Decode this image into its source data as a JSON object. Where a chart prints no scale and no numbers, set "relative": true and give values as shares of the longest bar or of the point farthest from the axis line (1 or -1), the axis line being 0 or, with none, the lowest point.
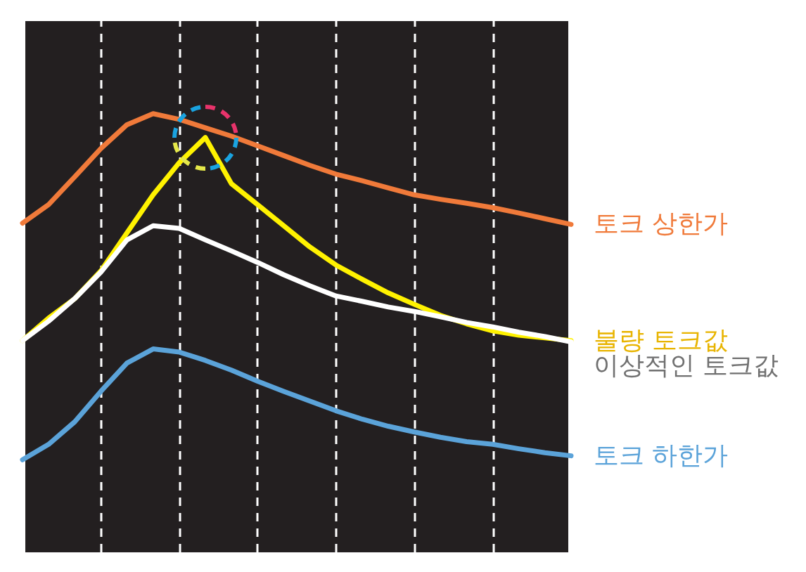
{
  "chart_data": {
    "type": "line",
    "relative": true,
    "categories": [
      null,
      null,
      null,
      null,
      null,
      null,
      null,
      null,
      null,
      null,
      null,
      null,
      null,
      null,
      null,
      null,
      null,
      null,
      null,
      null,
      null,
      null
    ],
    "tick_labels": false,
    "grid": true,
    "legend": false,
    "marker": "none",
    "line_style": "solid",
    "series": [
      {
        "name": "토크 상한가",
        "color": "#f07a3a",
        "values": [
          0.752,
          0.794,
          0.857,
          0.921,
          0.975,
          1,
          0.987,
          0.968,
          0.949,
          0.927,
          0.905,
          0.883,
          0.863,
          0.848,
          0.832,
          0.816,
          0.806,
          0.797,
          0.787,
          0.775,
          0.762,
          0.749
        ]
      },
      {
        "name": "불량 토크값",
        "color": "#fff200",
        "values": [
          0.486,
          0.537,
          0.581,
          0.644,
          0.73,
          0.816,
          0.889,
          0.946,
          0.841,
          0.794,
          0.746,
          0.698,
          0.657,
          0.625,
          0.594,
          0.568,
          0.543,
          0.524,
          0.508,
          0.498,
          0.492,
          0.486
        ]
      },
      {
        "name": "이상적인 토크값",
        "color": "#ffffff",
        "values": [
          0.486,
          0.53,
          0.581,
          0.641,
          0.714,
          0.746,
          0.74,
          0.714,
          0.689,
          0.663,
          0.635,
          0.61,
          0.587,
          0.575,
          0.562,
          0.552,
          0.54,
          0.527,
          0.517,
          0.505,
          0.495,
          0.483
        ]
      },
      {
        "name": "토크 하한가",
        "color": "#5ba3d9",
        "values": [
          0.216,
          0.251,
          0.302,
          0.371,
          0.435,
          0.467,
          0.46,
          0.441,
          0.419,
          0.394,
          0.371,
          0.349,
          0.327,
          0.308,
          0.292,
          0.279,
          0.267,
          0.257,
          0.251,
          0.241,
          0.232,
          0.225
        ]
      }
    ]
  }
}
